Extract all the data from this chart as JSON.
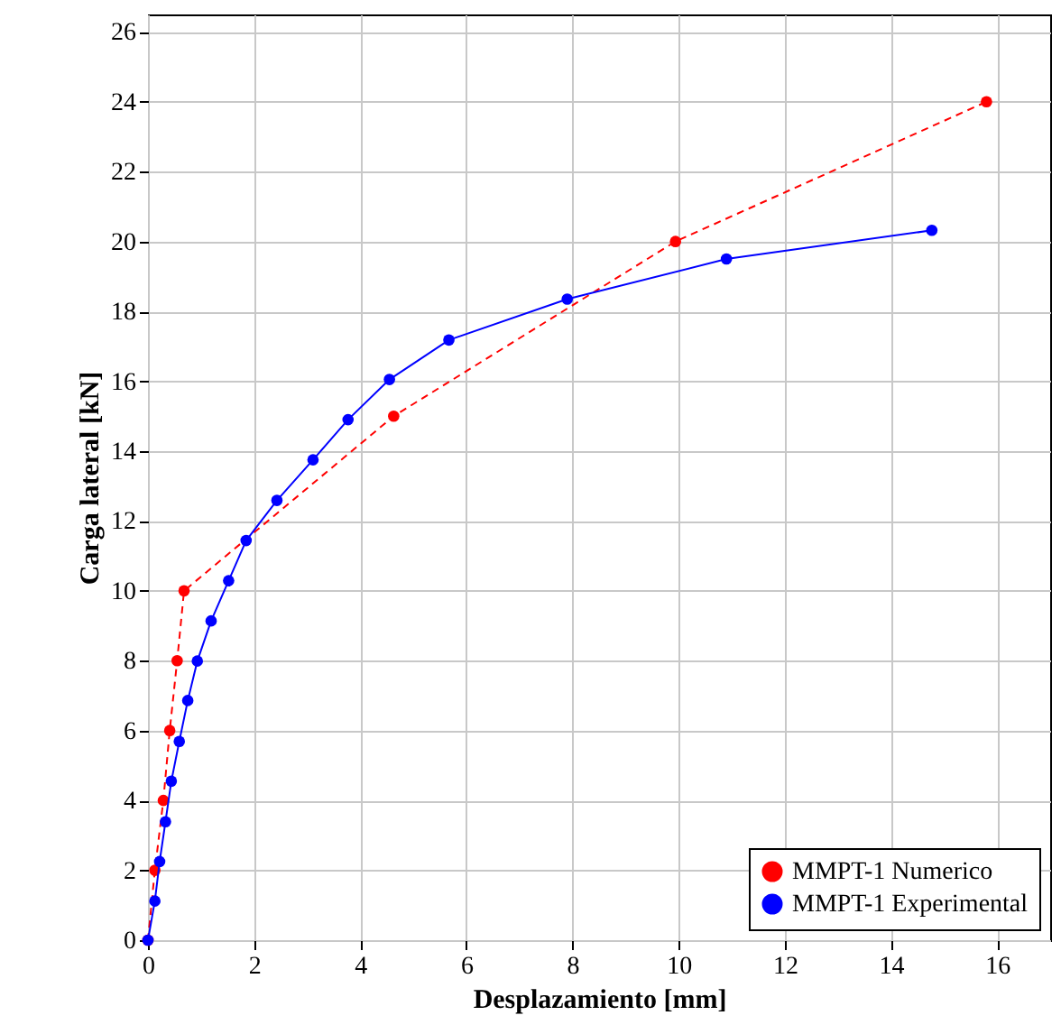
{
  "chart_data": {
    "type": "line",
    "xlabel": "Desplazamiento [mm]",
    "ylabel": "Carga lateral [kN]",
    "xlim": [
      0,
      17
    ],
    "ylim": [
      0,
      26.5
    ],
    "xticks": [
      0,
      2,
      4,
      6,
      8,
      10,
      12,
      14,
      16
    ],
    "yticks": [
      0,
      2,
      4,
      6,
      8,
      10,
      12,
      14,
      16,
      18,
      20,
      22,
      24,
      26
    ],
    "grid": true,
    "legend": "bottom right",
    "marker": "circle",
    "series": [
      {
        "name": "MMPT-1 Numerico",
        "color": "#ff0000",
        "line_style": "dashed",
        "x": [
          0,
          0.13,
          0.29,
          0.41,
          0.55,
          0.68,
          4.63,
          9.94,
          15.8
        ],
        "values": [
          0,
          2,
          4,
          6,
          8,
          10,
          15,
          20,
          24
        ]
      },
      {
        "name": "MMPT-1 Experimental",
        "color": "#0000ff",
        "line_style": "solid",
        "x": [
          0,
          0.13,
          0.22,
          0.33,
          0.44,
          0.59,
          0.75,
          0.93,
          1.19,
          1.52,
          1.85,
          2.43,
          3.11,
          3.77,
          4.55,
          5.67,
          7.9,
          10.9,
          14.77
        ],
        "values": [
          0,
          1.12,
          2.25,
          3.39,
          4.55,
          5.69,
          6.86,
          7.99,
          9.14,
          10.29,
          11.44,
          12.59,
          13.75,
          14.9,
          16.05,
          17.18,
          18.35,
          19.5,
          20.32
        ]
      }
    ]
  }
}
